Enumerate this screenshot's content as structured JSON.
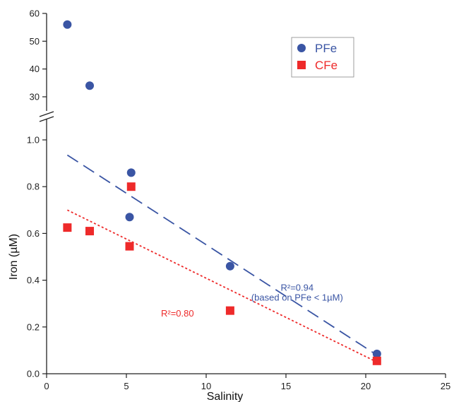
{
  "chart_data": {
    "type": "scatter",
    "xlabel": "Salinity",
    "ylabel": "Iron (µM)",
    "xlim": [
      0,
      25
    ],
    "x_ticks": [
      0,
      5,
      10,
      15,
      20,
      25
    ],
    "y_lower_lim": [
      0,
      1.0
    ],
    "y_lower_ticks": [
      0.0,
      0.2,
      0.4,
      0.6,
      0.8,
      1.0
    ],
    "y_lower_tick_labels": [
      "0.0",
      "0.2",
      "0.4",
      "0.6",
      "0.8",
      "1.0"
    ],
    "y_upper_lim": [
      30,
      60
    ],
    "y_upper_ticks": [
      30,
      40,
      50,
      60
    ],
    "axis_break": true,
    "legend_position": "top-right",
    "series": [
      {
        "name": "PFe",
        "marker": "circle",
        "color": "#3a55a4",
        "points": [
          {
            "x": 1.3,
            "y": 56
          },
          {
            "x": 2.7,
            "y": 34
          },
          {
            "x": 5.3,
            "y": 0.86
          },
          {
            "x": 5.2,
            "y": 0.67
          },
          {
            "x": 11.5,
            "y": 0.46
          },
          {
            "x": 20.7,
            "y": 0.085
          }
        ]
      },
      {
        "name": "CFe",
        "marker": "square",
        "color": "#ee2a2a",
        "points": [
          {
            "x": 1.3,
            "y": 0.625
          },
          {
            "x": 2.7,
            "y": 0.61
          },
          {
            "x": 5.3,
            "y": 0.8
          },
          {
            "x": 5.2,
            "y": 0.545
          },
          {
            "x": 11.5,
            "y": 0.27
          },
          {
            "x": 20.7,
            "y": 0.055
          }
        ]
      }
    ],
    "fits": [
      {
        "series": "PFe",
        "style": "dashed",
        "color": "#3a55a4",
        "x": [
          1.3,
          20.7
        ],
        "y": [
          0.935,
          0.08
        ]
      },
      {
        "series": "CFe",
        "style": "dotted",
        "color": "#ee2a2a",
        "x": [
          1.3,
          20.7
        ],
        "y": [
          0.7,
          0.05
        ]
      }
    ],
    "annotations": [
      {
        "text": "R²=0.94",
        "color": "#3a55a4",
        "x": 15.7,
        "y": 0.355
      },
      {
        "text": "(based on PFe < 1µM)",
        "color": "#3a55a4",
        "x": 15.7,
        "y": 0.312
      },
      {
        "text": "R²=0.80",
        "color": "#ee2a2a",
        "x": 8.2,
        "y": 0.245
      }
    ]
  }
}
